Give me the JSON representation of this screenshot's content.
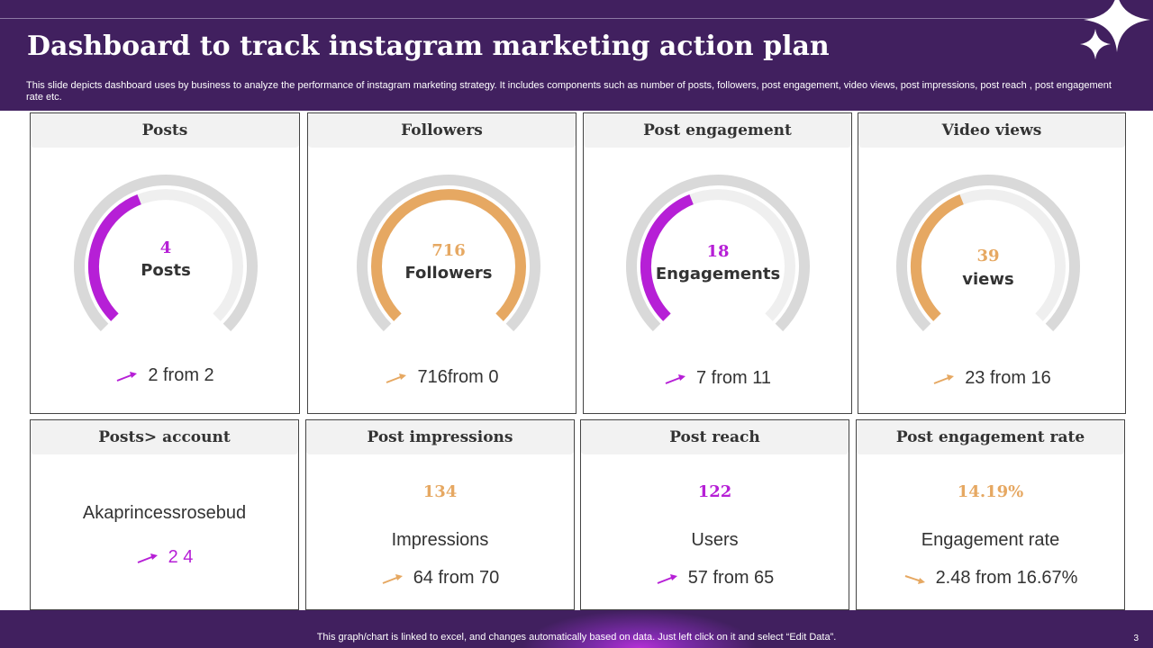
{
  "header": {
    "title": "Dashboard to track instagram marketing action plan",
    "subtitle": "This slide depicts dashboard uses by business to analyze the performance of instagram marketing strategy. It includes components such as number of posts, followers, post engagement, video views, post impressions, post reach , post engagement rate etc."
  },
  "colors": {
    "purple": "#b61fd6",
    "orange": "#e6a862",
    "header_bg": "#41205f",
    "track": "#d9d9d9",
    "inner_track": "#efefef"
  },
  "gauges": [
    {
      "title": "Posts",
      "value": "4",
      "unit": "Posts",
      "trend": "2 from 2",
      "color": "purple",
      "fraction": 0.42
    },
    {
      "title": "Followers",
      "value": "716",
      "unit": "Followers",
      "trend": "716from 0",
      "color": "orange",
      "fraction": 1.0
    },
    {
      "title": "Post engagement",
      "value": "18",
      "unit": "Engagements",
      "trend": "7 from 11",
      "color": "purple",
      "fraction": 0.42
    },
    {
      "title": "Video views",
      "value": "39",
      "unit": "views",
      "trend": "23 from 16",
      "color": "orange",
      "fraction": 0.42
    }
  ],
  "stats": [
    {
      "title": "Posts> account",
      "name": "Akaprincessrosebud",
      "trend": "2 4",
      "color": "purple"
    },
    {
      "title": "Post impressions",
      "value": "134",
      "label": "Impressions",
      "trend": "64 from 70",
      "color": "orange"
    },
    {
      "title": "Post reach",
      "value": "122",
      "label": "Users",
      "trend": "57 from 65",
      "color": "purple"
    },
    {
      "title": "Post engagement  rate",
      "value": "14.19%",
      "label": "Engagement  rate",
      "trend": "2.48 from 16.67%",
      "color": "orange"
    }
  ],
  "footer": {
    "note": "This graph/chart is linked to excel,  and changes automatically based on data. Just left click on it and select “Edit Data”.",
    "page": "3"
  }
}
